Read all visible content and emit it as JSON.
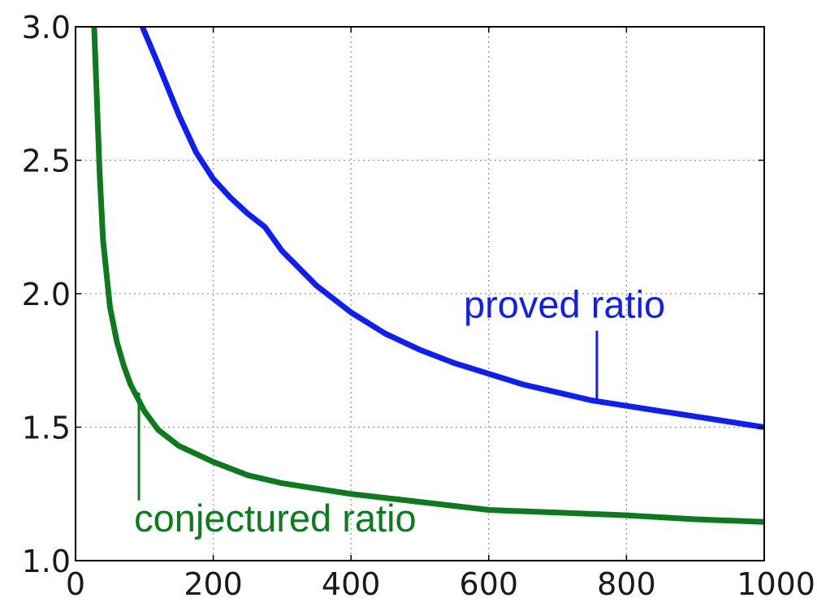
{
  "chart_data": {
    "type": "line",
    "title": "",
    "xlabel": "",
    "ylabel": "",
    "xlim": [
      0,
      1000
    ],
    "ylim": [
      1.0,
      3.0
    ],
    "grid": true,
    "xticks": [
      0,
      200,
      400,
      600,
      800,
      1000
    ],
    "xtick_labels": [
      "0",
      "200",
      "400",
      "600",
      "800",
      "1000"
    ],
    "yticks": [
      1.0,
      1.5,
      2.0,
      2.5,
      3.0
    ],
    "ytick_labels": [
      "1.0",
      "1.5",
      "2.0",
      "2.5",
      "3.0"
    ],
    "series": [
      {
        "key": "proved",
        "color": "#0f1ef5",
        "x": [
          97,
          120,
          150,
          175,
          200,
          225,
          250,
          275,
          300,
          350,
          400,
          450,
          500,
          550,
          600,
          650,
          700,
          750,
          800,
          850,
          900,
          950,
          1000
        ],
        "y": [
          3.0,
          2.86,
          2.67,
          2.53,
          2.43,
          2.36,
          2.3,
          2.25,
          2.16,
          2.03,
          1.93,
          1.85,
          1.79,
          1.74,
          1.7,
          1.66,
          1.63,
          1.6,
          1.58,
          1.56,
          1.54,
          1.52,
          1.5
        ],
        "annotation": {
          "text": "proved ratio",
          "point": [
            757,
            1.6
          ],
          "text_pos": [
            710,
            1.91
          ]
        }
      },
      {
        "key": "conjectured",
        "color": "#0e7a1e",
        "x": [
          27,
          30,
          35,
          40,
          50,
          60,
          70,
          80,
          90,
          100,
          120,
          150,
          200,
          250,
          300,
          400,
          500,
          600,
          700,
          800,
          900,
          1000
        ],
        "y": [
          3.0,
          2.8,
          2.45,
          2.2,
          1.95,
          1.82,
          1.73,
          1.66,
          1.61,
          1.56,
          1.49,
          1.43,
          1.37,
          1.32,
          1.29,
          1.25,
          1.22,
          1.19,
          1.18,
          1.17,
          1.155,
          1.145
        ],
        "annotation": {
          "text": "conjectured ratio",
          "point": [
            92,
            1.63
          ],
          "text_pos": [
            290,
            1.11
          ]
        }
      }
    ]
  }
}
